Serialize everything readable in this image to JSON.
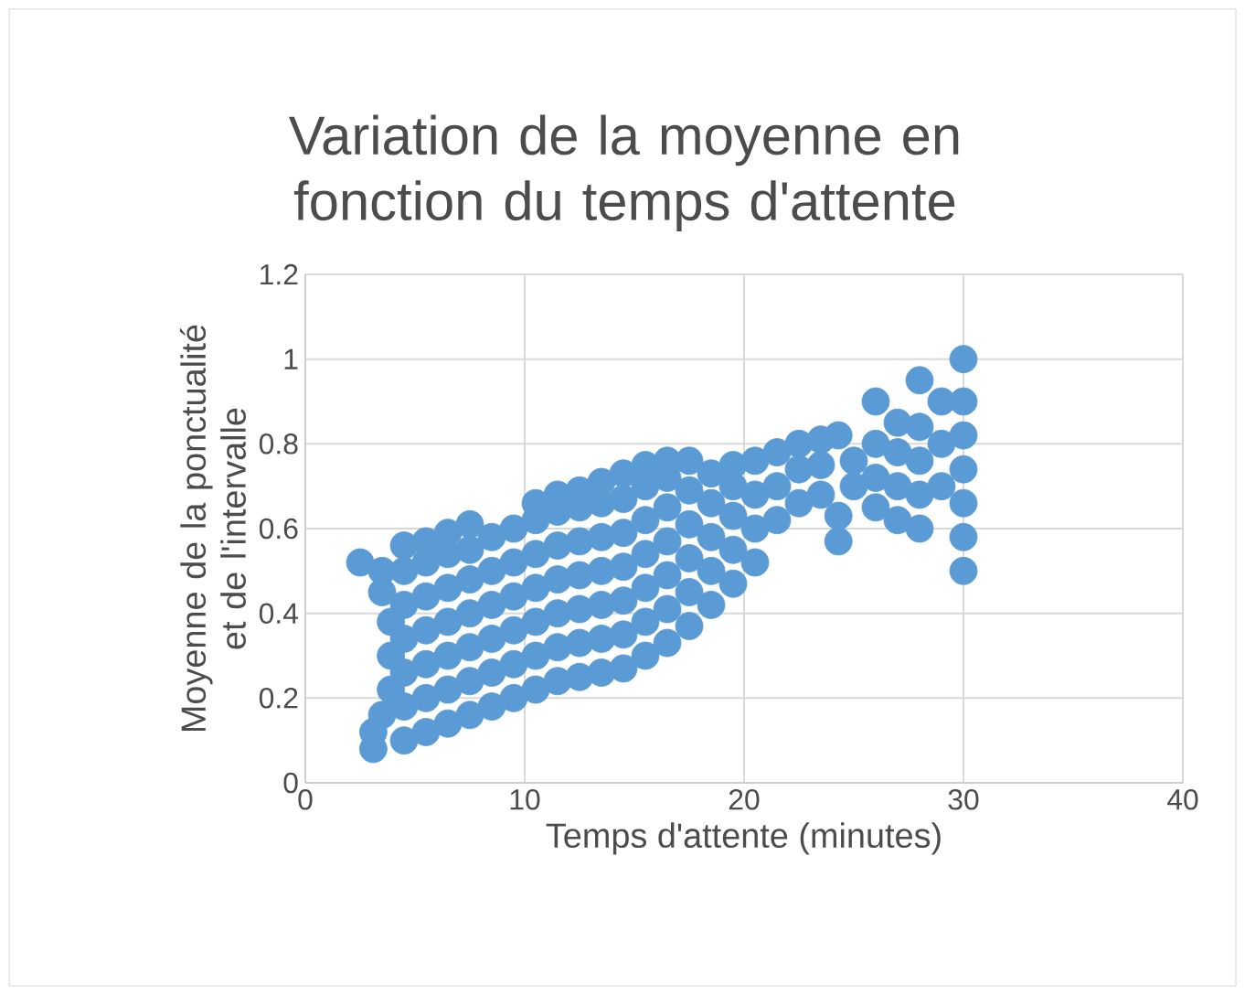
{
  "chart_data": {
    "type": "scatter",
    "title": "Variation de la moyenne en fonction du temps d'attente",
    "xlabel": "Temps d'attente (minutes)",
    "ylabel": "Moyenne de la ponctualité et de l'intervalle",
    "xlim": [
      0,
      40
    ],
    "ylim": [
      0,
      1.2
    ],
    "xticks": [
      0,
      10,
      20,
      30,
      40
    ],
    "yticks": [
      0,
      0.2,
      0.4,
      0.6,
      0.8,
      1,
      1.2
    ],
    "grid": true,
    "marker": "circle",
    "series": [
      {
        "color": "#5b9bd5",
        "x": [
          2.5,
          3.1,
          3.1,
          3.5,
          3.5,
          3.5,
          3.9,
          3.9,
          3.9,
          4.5,
          4.5,
          4.5,
          4.5,
          4.5,
          4.5,
          4.5,
          5.5,
          5.5,
          5.5,
          5.5,
          5.5,
          5.5,
          5.5,
          6.5,
          6.5,
          6.5,
          6.5,
          6.5,
          6.5,
          6.5,
          7.5,
          7.5,
          7.5,
          7.5,
          7.5,
          7.5,
          7.5,
          8.5,
          8.5,
          8.5,
          8.5,
          8.5,
          8.5,
          9.5,
          9.5,
          9.5,
          9.5,
          9.5,
          9.5,
          10.5,
          10.5,
          10.5,
          10.5,
          10.5,
          10.5,
          10.5,
          11.5,
          11.5,
          11.5,
          11.5,
          11.5,
          11.5,
          11.5,
          12.5,
          12.5,
          12.5,
          12.5,
          12.5,
          12.5,
          12.5,
          13.5,
          13.5,
          13.5,
          13.5,
          13.5,
          13.5,
          13.5,
          14.5,
          14.5,
          14.5,
          14.5,
          14.5,
          14.5,
          14.5,
          15.5,
          15.5,
          15.5,
          15.5,
          15.5,
          15.5,
          15.5,
          16.5,
          16.5,
          16.5,
          16.5,
          16.5,
          16.5,
          16.5,
          17.5,
          17.5,
          17.5,
          17.5,
          17.5,
          17.5,
          18.5,
          18.5,
          18.5,
          18.5,
          18.5,
          19.5,
          19.5,
          19.5,
          19.5,
          19.5,
          20.5,
          20.5,
          20.5,
          20.5,
          21.5,
          21.5,
          21.5,
          22.5,
          22.5,
          22.5,
          23.5,
          23.5,
          23.5,
          24.3,
          24.3,
          24.3,
          25,
          25,
          26,
          26,
          26,
          26,
          27,
          27,
          27,
          27,
          28,
          28,
          28,
          28,
          28,
          29,
          29,
          29,
          30,
          30,
          30,
          30,
          30,
          30,
          30
        ],
        "values": [
          0.52,
          0.08,
          0.12,
          0.16,
          0.45,
          0.5,
          0.22,
          0.3,
          0.38,
          0.1,
          0.18,
          0.26,
          0.34,
          0.42,
          0.5,
          0.56,
          0.12,
          0.2,
          0.28,
          0.36,
          0.44,
          0.52,
          0.57,
          0.14,
          0.22,
          0.3,
          0.38,
          0.46,
          0.54,
          0.59,
          0.16,
          0.24,
          0.32,
          0.4,
          0.48,
          0.55,
          0.61,
          0.18,
          0.26,
          0.34,
          0.42,
          0.5,
          0.58,
          0.2,
          0.28,
          0.36,
          0.44,
          0.52,
          0.6,
          0.22,
          0.3,
          0.38,
          0.46,
          0.54,
          0.62,
          0.66,
          0.24,
          0.32,
          0.4,
          0.48,
          0.56,
          0.64,
          0.68,
          0.25,
          0.33,
          0.41,
          0.49,
          0.57,
          0.65,
          0.69,
          0.26,
          0.34,
          0.42,
          0.5,
          0.58,
          0.66,
          0.71,
          0.27,
          0.35,
          0.43,
          0.51,
          0.59,
          0.67,
          0.73,
          0.3,
          0.38,
          0.46,
          0.54,
          0.62,
          0.7,
          0.75,
          0.33,
          0.41,
          0.49,
          0.57,
          0.65,
          0.72,
          0.76,
          0.37,
          0.45,
          0.53,
          0.61,
          0.69,
          0.76,
          0.42,
          0.5,
          0.58,
          0.66,
          0.73,
          0.47,
          0.55,
          0.63,
          0.7,
          0.75,
          0.52,
          0.6,
          0.68,
          0.76,
          0.62,
          0.7,
          0.78,
          0.66,
          0.74,
          0.8,
          0.68,
          0.75,
          0.81,
          0.57,
          0.63,
          0.82,
          0.7,
          0.76,
          0.65,
          0.72,
          0.8,
          0.9,
          0.62,
          0.7,
          0.78,
          0.85,
          0.6,
          0.68,
          0.76,
          0.84,
          0.95,
          0.7,
          0.8,
          0.9,
          0.5,
          0.58,
          0.66,
          0.74,
          0.82,
          0.9,
          1.0
        ]
      }
    ]
  }
}
